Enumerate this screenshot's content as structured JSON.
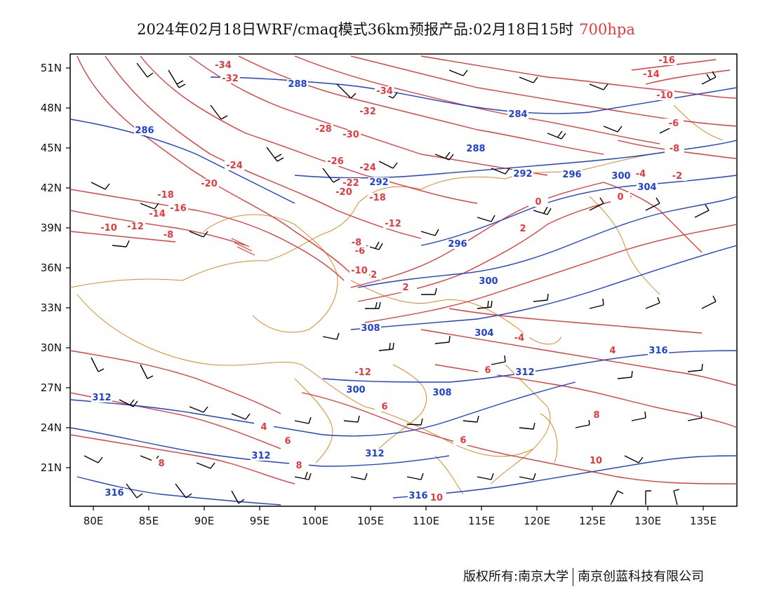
{
  "title": {
    "main": "2024年02月18日WRF/cmaq模式36km预报产品:02月18日15时",
    "level": "700hpa"
  },
  "axes": {
    "lat_labels": [
      "51N",
      "48N",
      "45N",
      "42N",
      "39N",
      "36N",
      "33N",
      "30N",
      "27N",
      "24N",
      "21N"
    ],
    "lon_labels": [
      "80E",
      "85E",
      "90E",
      "95E",
      "100E",
      "105E",
      "110E",
      "115E",
      "120E",
      "125E",
      "130E",
      "135E"
    ]
  },
  "temperature_labels": [
    "-34",
    "-32",
    "-34",
    "-32",
    "-28",
    "-30",
    "-26",
    "-24",
    "-24",
    "-22",
    "-20",
    "-20",
    "-18",
    "-16",
    "-14",
    "-12",
    "-12",
    "-10",
    "-8",
    "-18",
    "-16",
    "-14",
    "-10",
    "-8",
    "-6",
    "-4",
    "-2",
    "0",
    "0",
    "2",
    "2",
    "4",
    "6",
    "6",
    "6",
    "8",
    "8",
    "10",
    "10",
    "-2",
    "-4",
    "-6",
    "-8",
    "-10",
    "-12",
    "2",
    "4",
    "6",
    "8"
  ],
  "height_labels": [
    "288",
    "286",
    "284",
    "288",
    "292",
    "292",
    "296",
    "296",
    "300",
    "304",
    "300",
    "304",
    "308",
    "308",
    "312",
    "312",
    "312",
    "312",
    "316",
    "316",
    "316",
    "300"
  ],
  "colors": {
    "temperature": "#e23b3b",
    "height": "#2040d0",
    "boundary": "#d98a2a",
    "wind": "#000000",
    "frame": "#000000"
  },
  "credits": {
    "left": "版权所有:南京大学",
    "right": "南京创蓝科技有限公司"
  }
}
